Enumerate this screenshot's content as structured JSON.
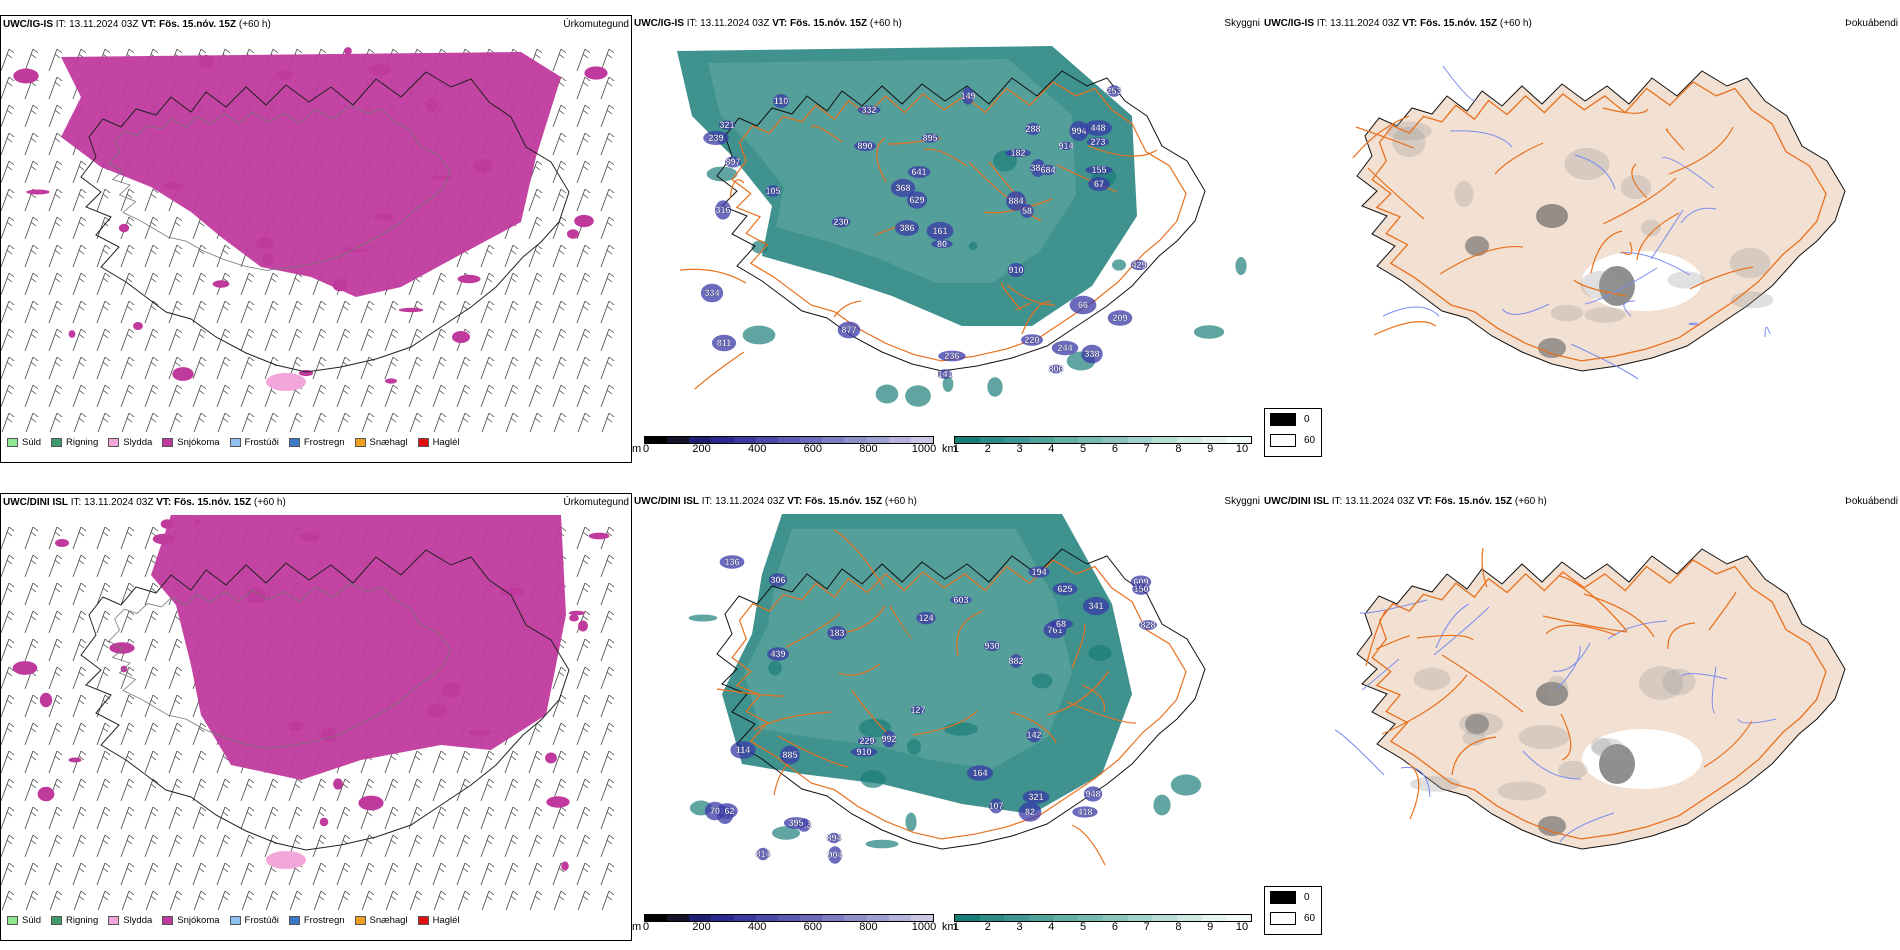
{
  "rows": [
    {
      "model": "UWC/IG-IS",
      "it_label": "IT:",
      "it_value": "13.11.2024 03Z",
      "vt_label": "VT:",
      "vt_value": "Fös. 15.nóv. 15Z",
      "lead": "(+60 h)",
      "left_title": "Úrkomutegund",
      "mid_title": "Skyggni",
      "right_title": "Þokuábendi",
      "cloud_base_labels": [
        "897",
        "884",
        "994",
        "910",
        "448",
        "429",
        "384",
        "316",
        "230",
        "338",
        "244",
        "629",
        "288",
        "273",
        "110",
        "334",
        "253",
        "321",
        "890",
        "149",
        "684",
        "368",
        "236",
        "239",
        "209",
        "641",
        "386",
        "895",
        "811",
        "220",
        "914",
        "155",
        "141",
        "80",
        "182",
        "161",
        "877",
        "105",
        "332",
        "66",
        "67",
        "58",
        "806"
      ]
    },
    {
      "model": "UWC/DINI ISL",
      "it_label": "IT:",
      "it_value": "13.11.2024 03Z",
      "vt_label": "VT:",
      "vt_value": "Fös. 15.nóv. 15Z",
      "lead": "(+60 h)",
      "left_title": "Úrkomutegund",
      "mid_title": "Skyggni",
      "right_title": "Þokuábendi",
      "cloud_base_labels": [
        "603",
        "828",
        "894",
        "306",
        "930",
        "904",
        "881",
        "625",
        "882",
        "341",
        "439",
        "885",
        "910",
        "229",
        "992",
        "814",
        "114",
        "162",
        "418",
        "609",
        "194",
        "343",
        "142",
        "395",
        "948",
        "70",
        "136",
        "124",
        "127",
        "150",
        "321",
        "761",
        "107",
        "183",
        "164",
        "82",
        "68"
      ]
    }
  ],
  "precip_legend": [
    {
      "label": "Súld",
      "color": "#8fe88f"
    },
    {
      "label": "Rigning",
      "color": "#3f9a6e"
    },
    {
      "label": "Slydda",
      "color": "#f3a6d9"
    },
    {
      "label": "Snjókoma",
      "color": "#c03a9e"
    },
    {
      "label": "Frostúði",
      "color": "#8ec0f0"
    },
    {
      "label": "Frostregn",
      "color": "#3a78c8"
    },
    {
      "label": "Snæhagl",
      "color": "#f0a020"
    },
    {
      "label": "Haglél",
      "color": "#e01010"
    }
  ],
  "terrain_colorbar": {
    "unit": "m",
    "ticks": [
      "0",
      "200",
      "400",
      "600",
      "800",
      "1000"
    ],
    "colors": [
      "#000000",
      "#141428",
      "#1e1e6e",
      "#2a2a90",
      "#3a3aa0",
      "#4a4aa8",
      "#5a5ab0",
      "#6a6ab8",
      "#7c7cc0",
      "#8e8ec8",
      "#a0a0d0",
      "#b4b4da",
      "#c8c8e4"
    ]
  },
  "visibility_colorbar": {
    "unit": "km",
    "ticks": [
      "1",
      "2",
      "3",
      "4",
      "5",
      "6",
      "7",
      "8",
      "9",
      "10"
    ],
    "colors": [
      "#177d78",
      "#2a8a84",
      "#3d968f",
      "#50a29a",
      "#63aea5",
      "#77bab1",
      "#8bc6bd",
      "#a1d2c9",
      "#b7ddd6",
      "#cde8e3",
      "#e3f3f0",
      "#f2faf8"
    ]
  },
  "fog_legend": {
    "values": [
      "0",
      "60"
    ]
  },
  "colors": {
    "snow": "#c03a9e",
    "visibility_low": "#1d7f7a",
    "cloud_base": "#3a3aa8",
    "roads": "#e8711e",
    "land_fog": "#f2e0d2",
    "coast": "#000000",
    "rivers": "#7a8cf0"
  }
}
